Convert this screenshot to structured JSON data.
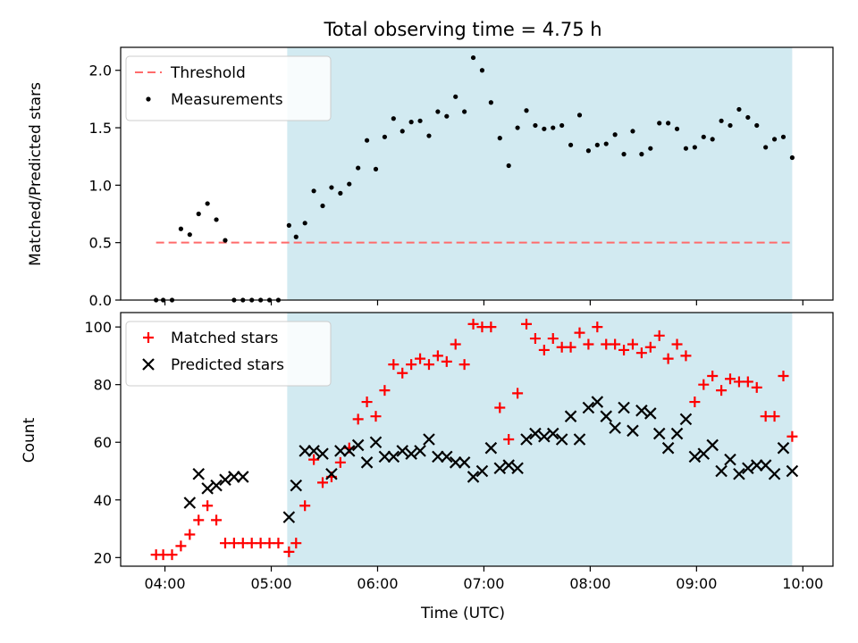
{
  "title": "Total observing time = 4.75 h",
  "xlabel": "Time (UTC)",
  "colors": {
    "span": "#add8e6",
    "threshold": "#ff6b6b",
    "matched": "#ff0000",
    "predicted": "#000000",
    "measurements": "#000000"
  },
  "chart_data": [
    {
      "type": "scatter",
      "panel": "top",
      "ylabel": "Matched/Predicted stars",
      "ylim": [
        0,
        2.2
      ],
      "yticks": [
        0.0,
        0.5,
        1.0,
        1.5,
        2.0
      ],
      "ytick_labels": [
        "0.0",
        "0.5",
        "1.0",
        "1.5",
        "2.0"
      ],
      "xticks": [
        "04:00",
        "05:00",
        "06:00",
        "07:00",
        "08:00",
        "09:00",
        "10:00"
      ],
      "shaded_span": [
        "05:09",
        "09:54"
      ],
      "legend_placement": "top-left",
      "threshold": {
        "name": "Threshold",
        "value": 0.5,
        "x_range": [
          "03:55",
          "09:54"
        ]
      },
      "series": [
        {
          "name": "Measurements",
          "marker": "dot",
          "x": [
            "03:55",
            "03:59",
            "04:04",
            "04:09",
            "04:14",
            "04:19",
            "04:24",
            "04:29",
            "04:34",
            "04:39",
            "04:44",
            "04:49",
            "04:54",
            "04:59",
            "05:04",
            "05:10",
            "05:14",
            "05:19",
            "05:24",
            "05:29",
            "05:34",
            "05:39",
            "05:44",
            "05:49",
            "05:54",
            "05:59",
            "06:04",
            "06:09",
            "06:14",
            "06:19",
            "06:24",
            "06:29",
            "06:34",
            "06:39",
            "06:44",
            "06:49",
            "06:54",
            "06:59",
            "07:04",
            "07:09",
            "07:14",
            "07:19",
            "07:24",
            "07:29",
            "07:34",
            "07:39",
            "07:44",
            "07:49",
            "07:54",
            "07:59",
            "08:04",
            "08:09",
            "08:14",
            "08:19",
            "08:24",
            "08:29",
            "08:34",
            "08:39",
            "08:44",
            "08:49",
            "08:54",
            "08:59",
            "09:04",
            "09:09",
            "09:14",
            "09:19",
            "09:24",
            "09:29",
            "09:34",
            "09:39",
            "09:44",
            "09:49",
            "09:54"
          ],
          "y": [
            0,
            0,
            0,
            0.62,
            0.57,
            0.75,
            0.84,
            0.7,
            0.52,
            0,
            0,
            0,
            0,
            0,
            0,
            0.65,
            0.55,
            0.67,
            0.95,
            0.82,
            0.98,
            0.93,
            1.01,
            1.15,
            1.39,
            1.14,
            1.42,
            1.58,
            1.47,
            1.55,
            1.56,
            1.43,
            1.64,
            1.6,
            1.77,
            1.64,
            2.11,
            2.0,
            1.72,
            1.41,
            1.17,
            1.5,
            1.65,
            1.52,
            1.49,
            1.5,
            1.52,
            1.35,
            1.61,
            1.3,
            1.35,
            1.36,
            1.44,
            1.27,
            1.47,
            1.27,
            1.32,
            1.54,
            1.54,
            1.49,
            1.32,
            1.33,
            1.42,
            1.4,
            1.56,
            1.52,
            1.66,
            1.59,
            1.52,
            1.33,
            1.4,
            1.42,
            1.24
          ]
        }
      ]
    },
    {
      "type": "scatter",
      "panel": "bottom",
      "ylabel": "Count",
      "ylim": [
        17,
        105
      ],
      "yticks": [
        20,
        40,
        60,
        80,
        100
      ],
      "ytick_labels": [
        "20",
        "40",
        "60",
        "80",
        "100"
      ],
      "xticks": [
        "04:00",
        "05:00",
        "06:00",
        "07:00",
        "08:00",
        "09:00",
        "10:00"
      ],
      "shaded_span": [
        "05:09",
        "09:54"
      ],
      "legend_placement": "top-left",
      "series": [
        {
          "name": "Matched stars",
          "marker": "plus",
          "x": [
            "03:55",
            "03:59",
            "04:04",
            "04:09",
            "04:14",
            "04:19",
            "04:24",
            "04:29",
            "04:34",
            "04:39",
            "04:44",
            "04:49",
            "04:54",
            "04:59",
            "05:04",
            "05:10",
            "05:14",
            "05:19",
            "05:24",
            "05:29",
            "05:34",
            "05:39",
            "05:44",
            "05:49",
            "05:54",
            "05:59",
            "06:04",
            "06:09",
            "06:14",
            "06:19",
            "06:24",
            "06:29",
            "06:34",
            "06:39",
            "06:44",
            "06:49",
            "06:54",
            "06:59",
            "07:04",
            "07:09",
            "07:14",
            "07:19",
            "07:24",
            "07:29",
            "07:34",
            "07:39",
            "07:44",
            "07:49",
            "07:54",
            "07:59",
            "08:04",
            "08:09",
            "08:14",
            "08:19",
            "08:24",
            "08:29",
            "08:34",
            "08:39",
            "08:44",
            "08:49",
            "08:54",
            "08:59",
            "09:04",
            "09:09",
            "09:14",
            "09:19",
            "09:24",
            "09:29",
            "09:34",
            "09:39",
            "09:44",
            "09:49",
            "09:54"
          ],
          "y": [
            21,
            21,
            21,
            24,
            28,
            33,
            38,
            33,
            25,
            25,
            25,
            25,
            25,
            25,
            25,
            22,
            25,
            38,
            54,
            46,
            48,
            53,
            58,
            68,
            74,
            69,
            78,
            87,
            84,
            87,
            89,
            87,
            90,
            88,
            94,
            87,
            101,
            100,
            100,
            72,
            61,
            77,
            101,
            96,
            92,
            96,
            93,
            93,
            98,
            94,
            100,
            94,
            94,
            92,
            94,
            91,
            93,
            97,
            89,
            94,
            90,
            74,
            80,
            83,
            78,
            82,
            81,
            81,
            79,
            69,
            69,
            83,
            62
          ]
        },
        {
          "name": "Predicted stars",
          "marker": "x",
          "x": [
            "04:14",
            "04:19",
            "04:24",
            "04:29",
            "04:34",
            "04:39",
            "04:44",
            "05:10",
            "05:14",
            "05:19",
            "05:24",
            "05:29",
            "05:34",
            "05:39",
            "05:44",
            "05:49",
            "05:54",
            "05:59",
            "06:04",
            "06:09",
            "06:14",
            "06:19",
            "06:24",
            "06:29",
            "06:34",
            "06:39",
            "06:44",
            "06:49",
            "06:54",
            "06:59",
            "07:04",
            "07:09",
            "07:14",
            "07:19",
            "07:24",
            "07:29",
            "07:34",
            "07:39",
            "07:44",
            "07:49",
            "07:54",
            "07:59",
            "08:04",
            "08:09",
            "08:14",
            "08:19",
            "08:24",
            "08:29",
            "08:34",
            "08:39",
            "08:44",
            "08:49",
            "08:54",
            "08:59",
            "09:04",
            "09:09",
            "09:14",
            "09:19",
            "09:24",
            "09:29",
            "09:34",
            "09:39",
            "09:44",
            "09:49",
            "09:54"
          ],
          "y": [
            39,
            49,
            44,
            45,
            47,
            48,
            48,
            34,
            45,
            57,
            57,
            56,
            49,
            57,
            57,
            59,
            53,
            60,
            55,
            55,
            57,
            56,
            57,
            61,
            55,
            55,
            53,
            53,
            48,
            50,
            58,
            51,
            52,
            51,
            61,
            63,
            62,
            63,
            61,
            69,
            61,
            72,
            74,
            69,
            65,
            72,
            64,
            71,
            70,
            63,
            58,
            63,
            68,
            55,
            56,
            59,
            50,
            54,
            49,
            51,
            52,
            52,
            49,
            58,
            50
          ]
        }
      ]
    }
  ]
}
